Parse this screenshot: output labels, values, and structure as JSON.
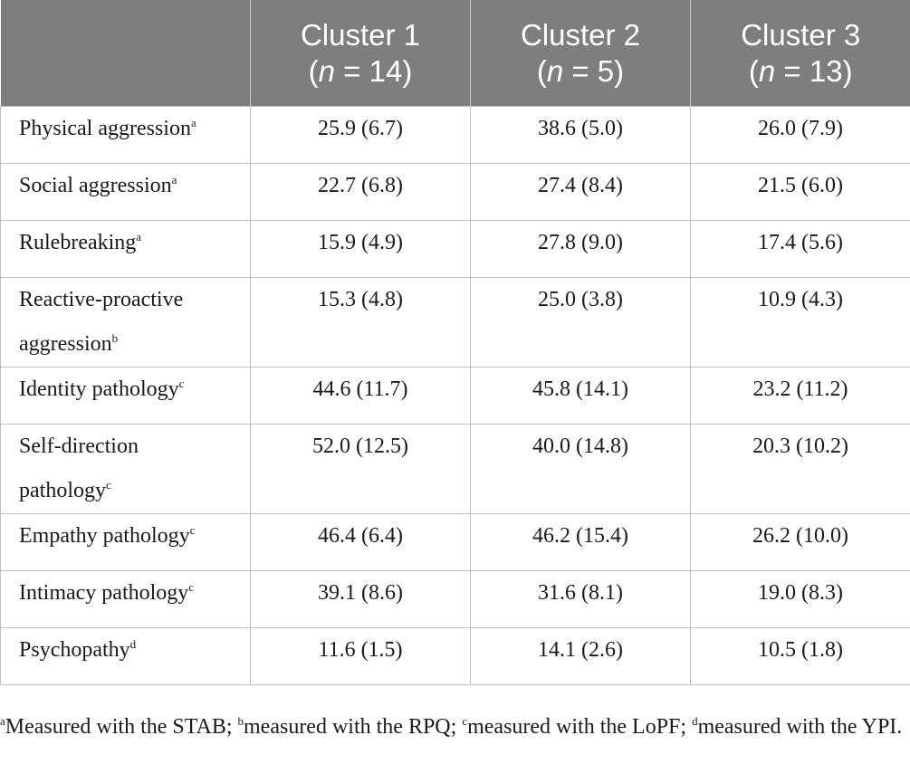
{
  "headers": [
    {
      "label": "",
      "n_prefix": "",
      "n_var": "",
      "n_suffix": ""
    },
    {
      "label": "Cluster 1",
      "n_prefix": "(",
      "n_var": "n",
      "n_suffix": " = 14)"
    },
    {
      "label": "Cluster 2",
      "n_prefix": "(",
      "n_var": "n",
      "n_suffix": " = 5)"
    },
    {
      "label": "Cluster 3",
      "n_prefix": "(",
      "n_var": "n",
      "n_suffix": " = 13)"
    }
  ],
  "rows": [
    {
      "label_line1": "Physical aggression",
      "label_line2": "",
      "sup": "a",
      "values": [
        "25.9 (6.7)",
        "38.6 (5.0)",
        "26.0 (7.9)"
      ]
    },
    {
      "label_line1": "Social aggression",
      "label_line2": "",
      "sup": "a",
      "values": [
        "22.7 (6.8)",
        "27.4 (8.4)",
        "21.5 (6.0)"
      ]
    },
    {
      "label_line1": "Rulebreaking",
      "label_line2": "",
      "sup": "a",
      "values": [
        "15.9 (4.9)",
        "27.8 (9.0)",
        "17.4 (5.6)"
      ]
    },
    {
      "label_line1": "Reactive-proactive",
      "label_line2": "aggression",
      "sup": "b",
      "values": [
        "15.3 (4.8)",
        "25.0 (3.8)",
        "10.9 (4.3)"
      ]
    },
    {
      "label_line1": "Identity pathology",
      "label_line2": "",
      "sup": "c",
      "values": [
        "44.6 (11.7)",
        "45.8 (14.1)",
        "23.2 (11.2)"
      ]
    },
    {
      "label_line1": "Self-direction",
      "label_line2": "pathology",
      "sup": "c",
      "values": [
        "52.0 (12.5)",
        "40.0 (14.8)",
        "20.3 (10.2)"
      ]
    },
    {
      "label_line1": "Empathy pathology",
      "label_line2": "",
      "sup": "c",
      "values": [
        "46.4 (6.4)",
        "46.2 (15.4)",
        "26.2 (10.0)"
      ]
    },
    {
      "label_line1": "Intimacy pathology",
      "label_line2": "",
      "sup": "c",
      "values": [
        "39.1 (8.6)",
        "31.6 (8.1)",
        "19.0 (8.3)"
      ]
    },
    {
      "label_line1": "Psychopathy",
      "label_line2": "",
      "sup": "d",
      "values": [
        "11.6 (1.5)",
        "14.1 (2.6)",
        "10.5 (1.8)"
      ]
    }
  ],
  "footnote": {
    "parts": [
      {
        "sup": "a",
        "text": "Measured with the STAB; "
      },
      {
        "sup": "b",
        "text": "measured with the RPQ; "
      },
      {
        "sup": "c",
        "text": "measured with the LoPF; "
      },
      {
        "sup": "d",
        "text": "measured with the YPI."
      }
    ]
  },
  "colors": {
    "header_bg": "#7e7e7e",
    "header_text": "#ffffff",
    "border": "#bfbfbf"
  }
}
